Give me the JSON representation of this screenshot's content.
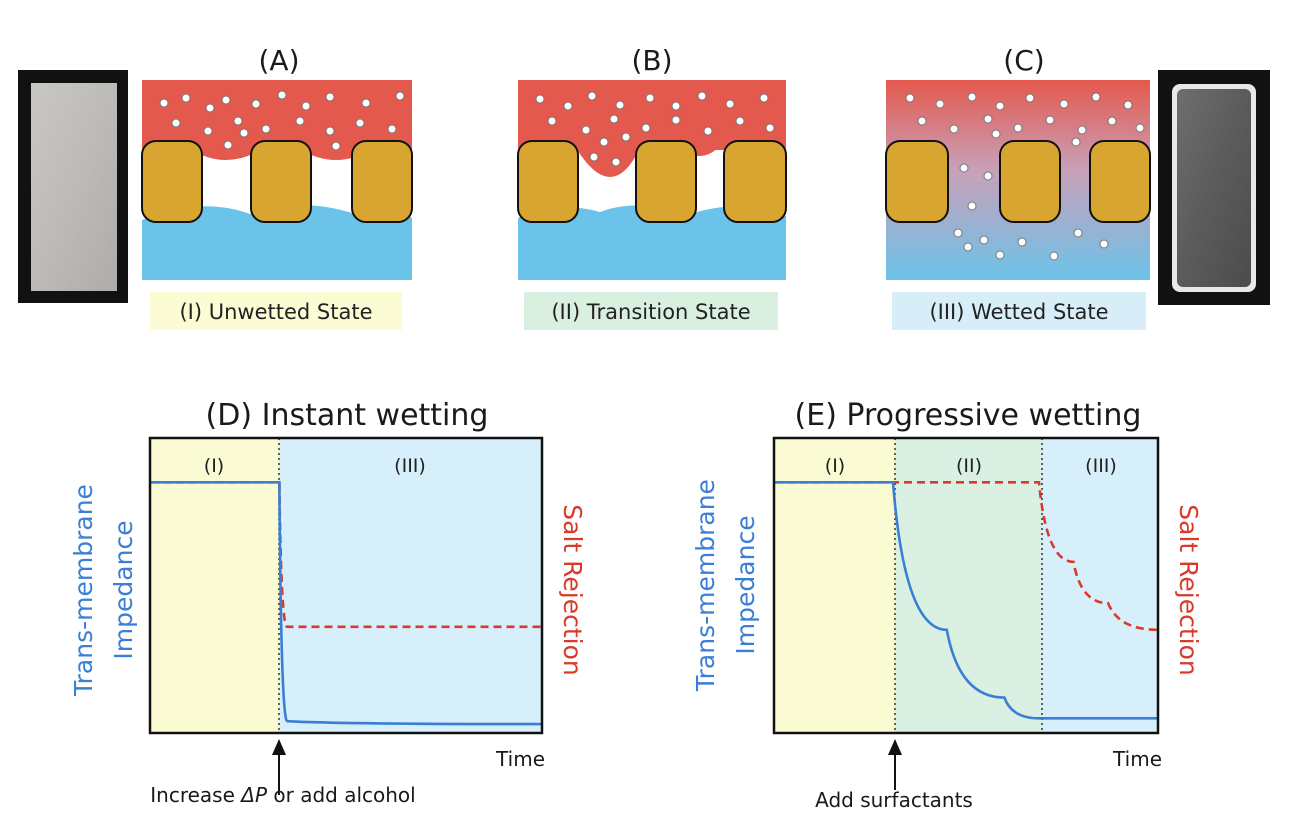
{
  "panels": {
    "A": {
      "letter": "(A)",
      "state": "(I) Unwetted State"
    },
    "B": {
      "letter": "(B)",
      "state": "(II) Transition State"
    },
    "C": {
      "letter": "(C)",
      "state": "(III) Wetted State"
    }
  },
  "chart_data": [
    {
      "type": "line",
      "title": "(D) Instant wetting",
      "ylabel_left": [
        "Trans-membrane",
        "Impedance"
      ],
      "ylabel_right": "Salt Rejection",
      "xlabel": "Time",
      "regions": [
        "(I)",
        "(III)"
      ],
      "annotation": "Increase ΔP or add alcohol",
      "annotation_parts": [
        "Increase ",
        "ΔP",
        " or add alcohol"
      ],
      "series": [
        {
          "name": "Salt Rejection",
          "style": "dashed",
          "color": "#d93a2b",
          "x": [
            0,
            0.33,
            0.35,
            1.0
          ],
          "y": [
            0.85,
            0.85,
            0.36,
            0.36
          ]
        },
        {
          "name": "Trans-membrane Impedance",
          "style": "solid",
          "color": "#3b7fd4",
          "x": [
            0,
            0.33,
            0.35,
            1.0
          ],
          "y": [
            0.85,
            0.85,
            0.04,
            0.03
          ]
        }
      ]
    },
    {
      "type": "line",
      "title": "(E) Progressive wetting",
      "ylabel_left": [
        "Trans-membrane",
        "Impedance"
      ],
      "ylabel_right": "Salt Rejection",
      "xlabel": "Time",
      "regions": [
        "(I)",
        "(II)",
        "(III)"
      ],
      "annotation": "Add surfactants",
      "series": [
        {
          "name": "Salt Rejection",
          "style": "dashed",
          "color": "#d93a2b",
          "x": [
            0,
            0.69,
            0.78,
            0.87,
            1.0
          ],
          "y": [
            0.85,
            0.85,
            0.58,
            0.44,
            0.35
          ]
        },
        {
          "name": "Trans-membrane Impedance",
          "style": "solid",
          "color": "#3b7fd4",
          "x": [
            0,
            0.31,
            0.45,
            0.6,
            0.69,
            1.0
          ],
          "y": [
            0.85,
            0.85,
            0.35,
            0.12,
            0.05,
            0.05
          ]
        }
      ]
    }
  ],
  "colors": {
    "feed_red": "#e4594d",
    "permeate_blue": "#6cc3ea",
    "membrane_gold": "#d9a531",
    "region_yellow": "#fafbd2",
    "region_green": "#d9f0e2",
    "region_blue": "#d6effb",
    "impedance_blue": "#3b7fd4",
    "rejection_red": "#d93a2b"
  }
}
